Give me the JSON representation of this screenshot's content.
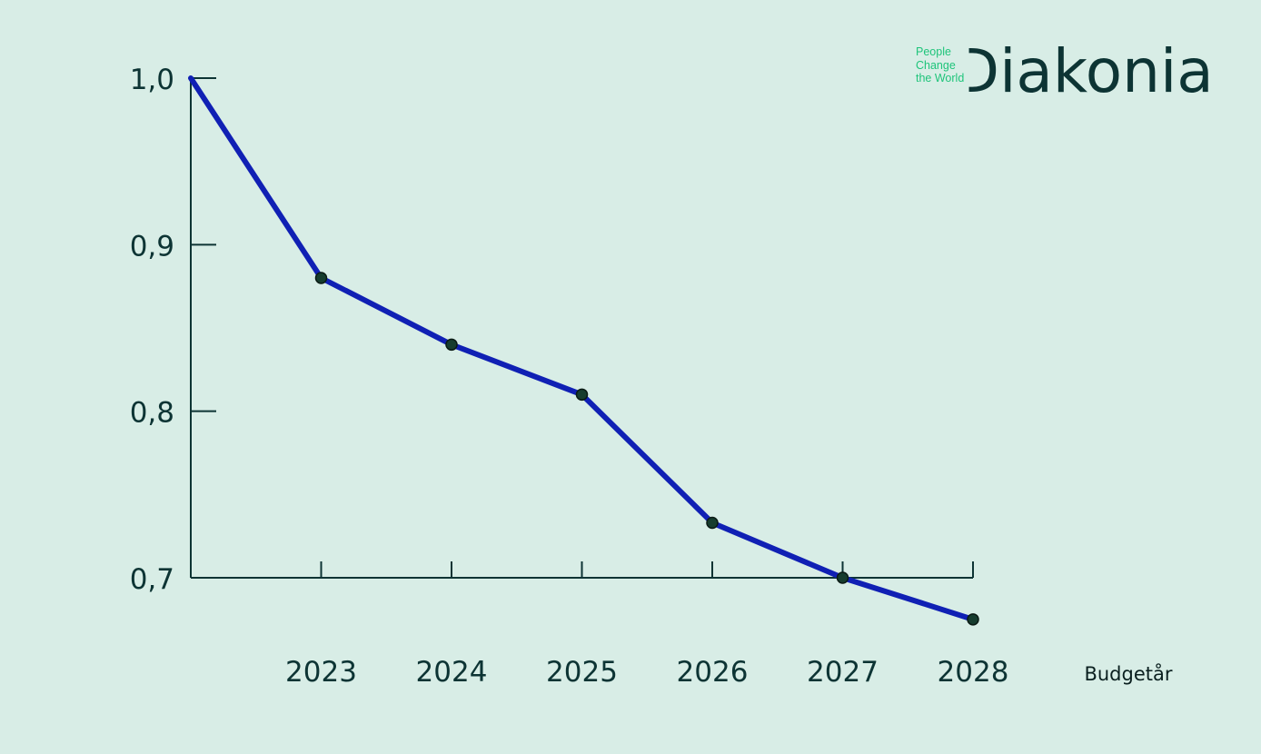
{
  "brand": {
    "tagline": [
      "People",
      "Change",
      "the World"
    ],
    "name_first": "D",
    "name_rest": "iakonia"
  },
  "colors": {
    "background": "#d8ede6",
    "line": "#1020b4",
    "axis": "#0d3434",
    "marker": "#163c2e",
    "tagline": "#1ec47a"
  },
  "chart_data": {
    "type": "line",
    "x_anchor_value": 1.0,
    "categories": [
      "2023",
      "2024",
      "2025",
      "2026",
      "2027",
      "2028"
    ],
    "values": [
      0.88,
      0.84,
      0.81,
      0.733,
      0.7,
      0.675
    ],
    "yticks": [
      "1,0",
      "0,9",
      "0,8",
      "0,7"
    ],
    "ytick_values": [
      1.0,
      0.9,
      0.8,
      0.7
    ],
    "ylim": [
      0.7,
      1.0
    ],
    "xlabel": "Budgetår",
    "ylabel": "",
    "title": "",
    "grid": false,
    "markers": true
  }
}
